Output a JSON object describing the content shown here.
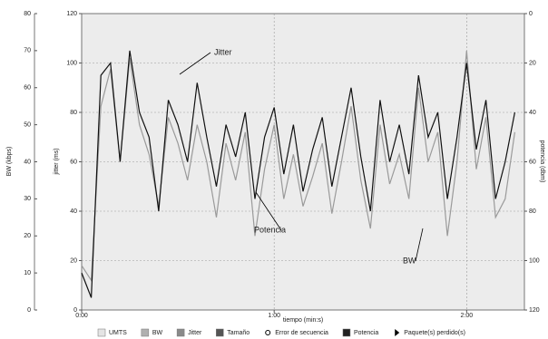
{
  "chart_data": {
    "type": "line",
    "annotations": [
      "Jitter",
      "Potencia",
      "BW"
    ],
    "x_label": "tiempo (min:s)",
    "y_label": "jitter (ms)",
    "y3_label": "BW (kbps)",
    "y2_label": "potencia (dbm)",
    "x": [
      0,
      3,
      6,
      9,
      12,
      15,
      18,
      21,
      24,
      27,
      30,
      33,
      36,
      39,
      42,
      45,
      48,
      51,
      54,
      57,
      60,
      63,
      66,
      69,
      72,
      75,
      78,
      81,
      84,
      87,
      90,
      93,
      96,
      99,
      102,
      105,
      108,
      111,
      114,
      117,
      120,
      123,
      126,
      129,
      132,
      135
    ],
    "xlim": [
      0,
      138
    ],
    "xticks": [
      {
        "value": 0,
        "label": "0:00"
      },
      {
        "value": 60,
        "label": "1:00"
      },
      {
        "value": 120,
        "label": "2:00"
      }
    ],
    "ylim": [
      0,
      120
    ],
    "yticks": [
      0,
      20,
      40,
      60,
      80,
      100,
      120
    ],
    "y3lim": [
      0,
      80
    ],
    "y3ticks": [
      0,
      10,
      20,
      30,
      40,
      50,
      60,
      70,
      80
    ],
    "y2lim": [
      0,
      120
    ],
    "y2ticks": [
      0,
      20,
      40,
      60,
      80,
      100,
      120
    ],
    "y2_reversed": true,
    "grid": true,
    "series": [
      {
        "name": "Jitter",
        "color": "#111111",
        "axis": "y",
        "values": [
          15,
          5,
          95,
          100,
          60,
          105,
          80,
          70,
          40,
          85,
          75,
          60,
          92,
          70,
          50,
          75,
          62,
          80,
          45,
          70,
          82,
          55,
          75,
          48,
          65,
          78,
          50,
          70,
          90,
          62,
          40,
          85,
          60,
          75,
          55,
          95,
          70,
          80,
          45,
          70,
          100,
          65,
          85,
          45,
          60,
          80
        ]
      },
      {
        "name": "BW",
        "color": "#9a9a9a",
        "axis": "y3",
        "values": [
          12,
          8,
          55,
          65,
          40,
          68,
          50,
          42,
          28,
          52,
          45,
          35,
          50,
          40,
          25,
          45,
          35,
          48,
          20,
          38,
          50,
          30,
          42,
          28,
          36,
          45,
          26,
          40,
          55,
          35,
          22,
          50,
          34,
          42,
          30,
          60,
          40,
          48,
          20,
          40,
          70,
          38,
          52,
          25,
          30,
          48
        ]
      }
    ],
    "legend": [
      {
        "name": "UMTS",
        "color": "#e4e4e4"
      },
      {
        "name": "BW",
        "color": "#b0b0b0"
      },
      {
        "name": "Jitter",
        "color": "#8a8a8a"
      },
      {
        "name": "Tamaño",
        "color": "#555555"
      },
      {
        "name": "Error de secuencia",
        "color": "circle"
      },
      {
        "name": "Potencia",
        "color": "#222222"
      },
      {
        "name": "Paquete(s) perdido(s)",
        "color": "triangle"
      }
    ]
  }
}
